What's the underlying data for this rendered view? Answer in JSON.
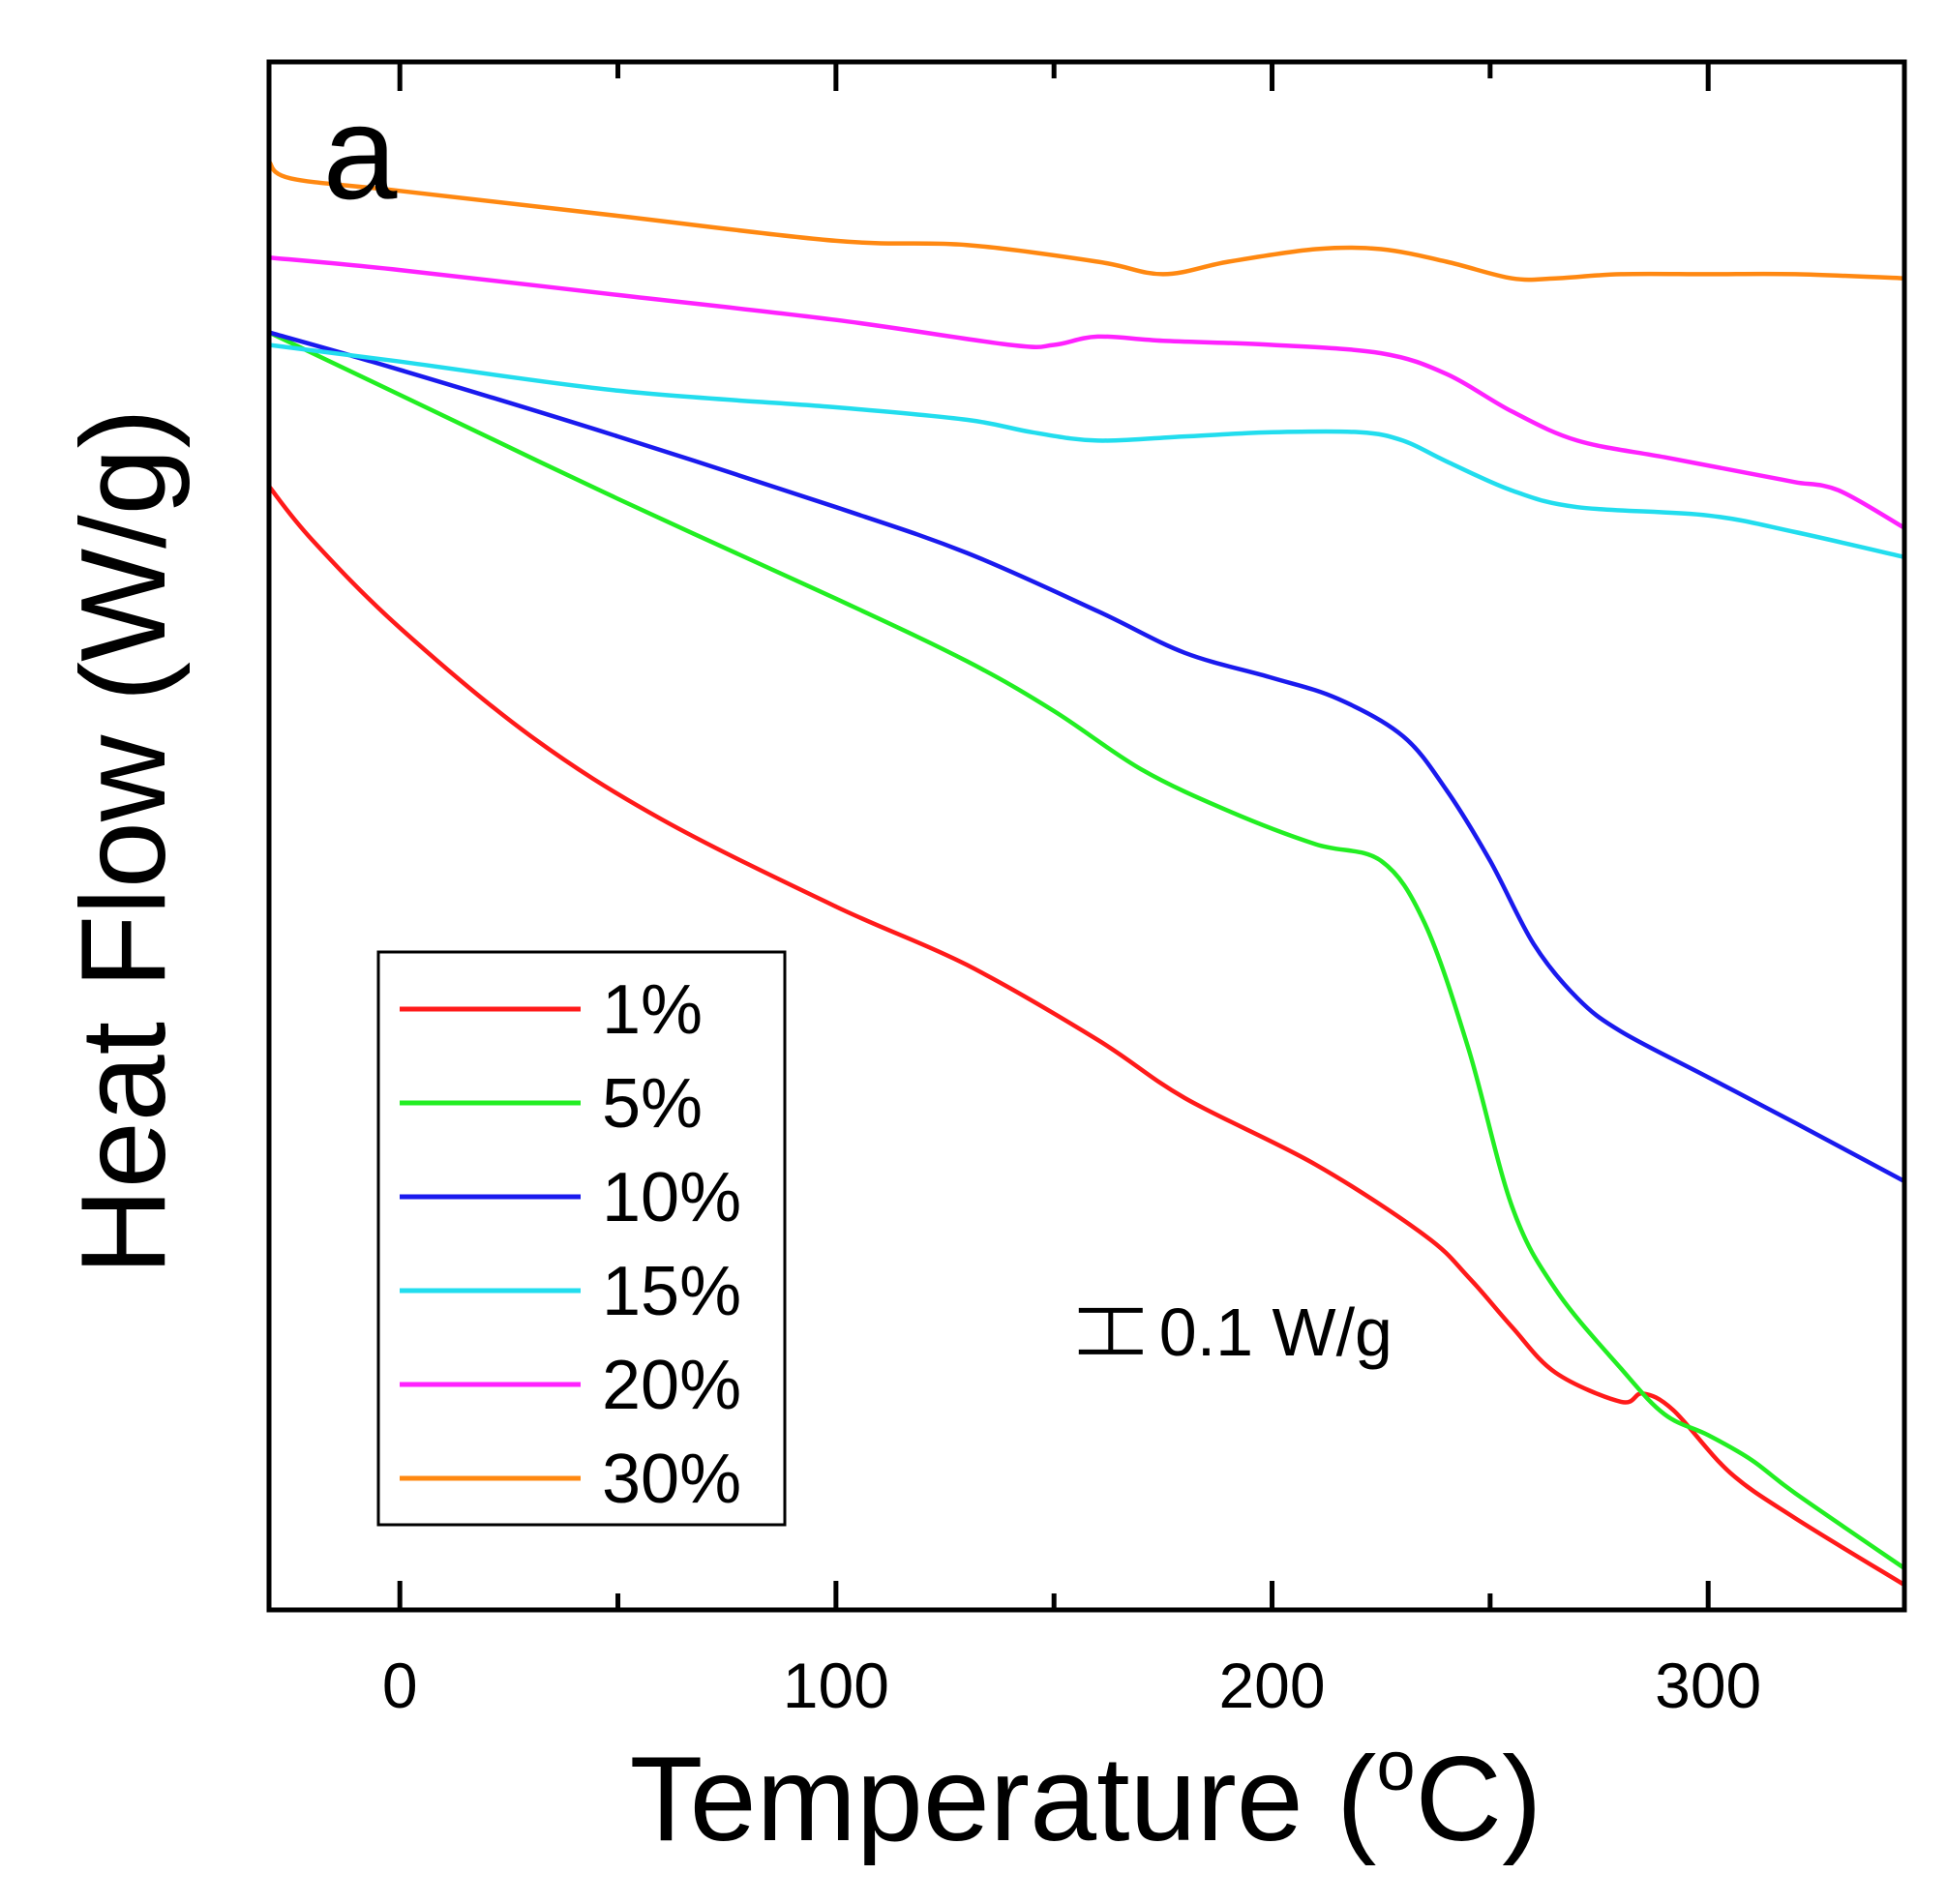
{
  "chart_data": {
    "type": "line",
    "panel_label": "a",
    "title": "",
    "xlabel": "Temperature (",
    "xlabel_superscript": "o",
    "xlabel_suffix": "C)",
    "ylabel": "Heat Flow (W/g)",
    "xlim": [
      -30,
      345
    ],
    "ylim": [
      -2.4,
      1.32
    ],
    "x_ticks": [
      0,
      100,
      200,
      300
    ],
    "x_minor_ticks": [
      50,
      150,
      250
    ],
    "y_tick_labels": false,
    "grid": false,
    "legend_position": "bottom-left",
    "scale_bar": {
      "label": "0.1 W/g",
      "value": 0.1,
      "x": 163,
      "y_bottom": -1.78
    },
    "series": [
      {
        "name": "1%",
        "color": "#ff1a1a",
        "x": [
          -30,
          -20,
          0,
          30,
          60,
          100,
          130,
          160,
          180,
          210,
          235,
          245,
          255,
          265,
          280,
          285,
          292,
          305,
          320,
          345
        ],
        "y": [
          0.3,
          0.17,
          -0.04,
          -0.3,
          -0.5,
          -0.71,
          -0.85,
          -1.03,
          -1.17,
          -1.33,
          -1.5,
          -1.6,
          -1.72,
          -1.83,
          -1.9,
          -1.88,
          -1.92,
          -2.07,
          -2.18,
          -2.34
        ]
      },
      {
        "name": "5%",
        "color": "#22ee22",
        "x": [
          -30,
          0,
          50,
          100,
          130,
          150,
          170,
          190,
          210,
          225,
          235,
          245,
          255,
          265,
          280,
          290,
          300,
          310,
          320,
          345
        ],
        "y": [
          0.67,
          0.52,
          0.27,
          0.03,
          -0.12,
          -0.24,
          -0.38,
          -0.48,
          -0.56,
          -0.6,
          -0.75,
          -1.05,
          -1.43,
          -1.63,
          -1.82,
          -1.93,
          -1.98,
          -2.04,
          -2.12,
          -2.3
        ]
      },
      {
        "name": "10%",
        "color": "#1a1aee",
        "x": [
          -30,
          0,
          50,
          100,
          130,
          160,
          180,
          200,
          215,
          230,
          240,
          250,
          260,
          270,
          280,
          300,
          320,
          345
        ],
        "y": [
          0.67,
          0.58,
          0.42,
          0.25,
          0.14,
          0.0,
          -0.1,
          -0.16,
          -0.21,
          -0.3,
          -0.43,
          -0.6,
          -0.8,
          -0.93,
          -1.01,
          -1.12,
          -1.23,
          -1.37
        ]
      },
      {
        "name": "15%",
        "color": "#22ddee",
        "x": [
          -30,
          0,
          50,
          100,
          130,
          145,
          160,
          180,
          200,
          220,
          230,
          240,
          255,
          270,
          300,
          320,
          345
        ],
        "y": [
          0.64,
          0.6,
          0.53,
          0.49,
          0.46,
          0.43,
          0.41,
          0.42,
          0.43,
          0.43,
          0.41,
          0.36,
          0.29,
          0.25,
          0.23,
          0.19,
          0.13
        ]
      },
      {
        "name": "20%",
        "color": "#ff22ff",
        "x": [
          -30,
          0,
          50,
          100,
          140,
          150,
          160,
          175,
          200,
          225,
          240,
          255,
          270,
          290,
          310,
          320,
          330,
          345
        ],
        "y": [
          0.85,
          0.82,
          0.76,
          0.7,
          0.64,
          0.64,
          0.66,
          0.65,
          0.64,
          0.62,
          0.57,
          0.48,
          0.41,
          0.37,
          0.33,
          0.31,
          0.29,
          0.2
        ]
      },
      {
        "name": "30%",
        "color": "#ff8811",
        "x": [
          -30,
          -25,
          0,
          50,
          100,
          130,
          160,
          175,
          190,
          210,
          225,
          240,
          255,
          265,
          280,
          300,
          320,
          345
        ],
        "y": [
          1.08,
          1.04,
          1.01,
          0.95,
          0.89,
          0.88,
          0.84,
          0.81,
          0.84,
          0.87,
          0.87,
          0.84,
          0.8,
          0.8,
          0.81,
          0.81,
          0.81,
          0.8
        ]
      }
    ]
  }
}
